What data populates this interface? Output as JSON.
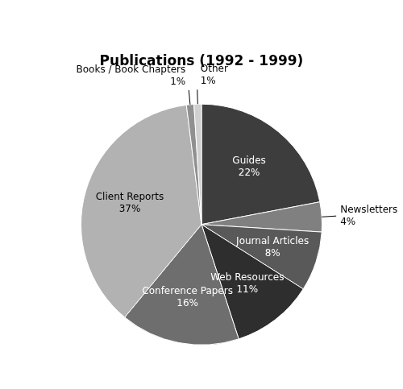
{
  "chart_data": {
    "type": "pie",
    "title": "Publications (1992 - 1999)",
    "categories": [
      "Guides",
      "Newsletters",
      "Journal Articles",
      "Web Resources",
      "Conference Papers",
      "Client Reports",
      "Books / Book Chapters",
      "Other"
    ],
    "values": [
      22,
      4,
      8,
      11,
      16,
      37,
      1,
      1
    ],
    "value_labels": [
      "22%",
      "4%",
      "8%",
      "11%",
      "16%",
      "37%",
      "1%",
      "1%"
    ],
    "colors": [
      "#3d3d3d",
      "#808080",
      "#595959",
      "#2e2e2e",
      "#6e6e6e",
      "#b2b2b2",
      "#909090",
      "#d0d0d0"
    ],
    "data_labels": true
  }
}
